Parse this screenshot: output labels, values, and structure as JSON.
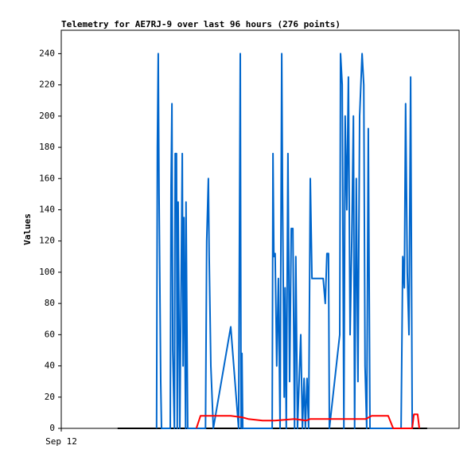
{
  "chart_data": {
    "type": "line",
    "title": "Telemetry for AE7RJ-9 over last 96 hours (276 points)",
    "y_label": "Values",
    "xlim": [
      0,
      96
    ],
    "xticks": [
      {
        "value": 0,
        "label": "Sep 12"
      }
    ],
    "ylim": [
      0,
      255
    ],
    "yticks": [
      0,
      20,
      40,
      60,
      80,
      100,
      120,
      140,
      160,
      180,
      200,
      220,
      240
    ],
    "series": [
      {
        "color": "#000000",
        "x": [
          13.6,
          88.3
        ],
        "values": [
          0,
          0
        ]
      },
      {
        "color": "#0066cc",
        "x": [
          23.0,
          23.2,
          23.4,
          23.6,
          24.0,
          24.2,
          26.3,
          26.5,
          26.7,
          26.9,
          27.3,
          27.5,
          27.8,
          28.0,
          28.2,
          28.6,
          29.2,
          29.4,
          29.6,
          30.0,
          30.1,
          30.5,
          34.8,
          35.1,
          35.5,
          35.7,
          36.1,
          36.7,
          40.9,
          42.8,
          43.2,
          43.4,
          43.6,
          43.8,
          50.9,
          51.1,
          51.3,
          51.6,
          52.0,
          52.4,
          52.8,
          53.2,
          53.4,
          53.8,
          54.0,
          54.3,
          54.7,
          55.1,
          55.5,
          55.9,
          56.3,
          56.6,
          57.0,
          57.8,
          58.2,
          58.6,
          58.9,
          59.3,
          59.7,
          60.1,
          60.5,
          63.2,
          63.7,
          64.1,
          64.5,
          64.7,
          67.2,
          67.4,
          67.8,
          68.2,
          68.5,
          68.9,
          69.3,
          69.7,
          70.1,
          70.5,
          70.8,
          71.2,
          71.6,
          72.0,
          72.6,
          73.0,
          73.3,
          73.7,
          74.1,
          74.5,
          82.0,
          82.4,
          82.8,
          83.1,
          83.5,
          83.9,
          84.3,
          84.7
        ],
        "values": [
          0,
          180,
          240,
          150,
          30,
          0,
          0,
          155,
          208,
          50,
          0,
          176,
          176,
          0,
          145,
          0,
          176,
          40,
          135,
          0,
          145,
          0,
          0,
          120,
          160,
          110,
          40,
          0,
          65,
          0,
          240,
          0,
          48,
          0,
          0,
          176,
          110,
          112,
          40,
          96,
          0,
          240,
          150,
          20,
          90,
          0,
          176,
          30,
          128,
          128,
          0,
          110,
          0,
          60,
          0,
          32,
          0,
          32,
          0,
          160,
          96,
          96,
          80,
          112,
          112,
          0,
          60,
          240,
          220,
          0,
          200,
          140,
          225,
          60,
          120,
          200,
          0,
          160,
          30,
          200,
          240,
          220,
          40,
          0,
          192,
          0,
          0,
          110,
          90,
          208,
          100,
          60,
          225,
          0
        ]
      },
      {
        "color": "#ff0000",
        "x": [
          32.6,
          33.6,
          36.3,
          40.9,
          43.8,
          45.1,
          48.6,
          51.5,
          56.3,
          59.1,
          60.1,
          73.5,
          74.9,
          78.9,
          80.1,
          84.7,
          85.1,
          86.0,
          86.4
        ],
        "values": [
          0,
          8,
          8,
          8,
          7,
          6,
          5,
          5,
          6,
          5,
          6,
          6,
          8,
          8,
          0,
          0,
          9,
          9,
          0
        ]
      }
    ]
  }
}
